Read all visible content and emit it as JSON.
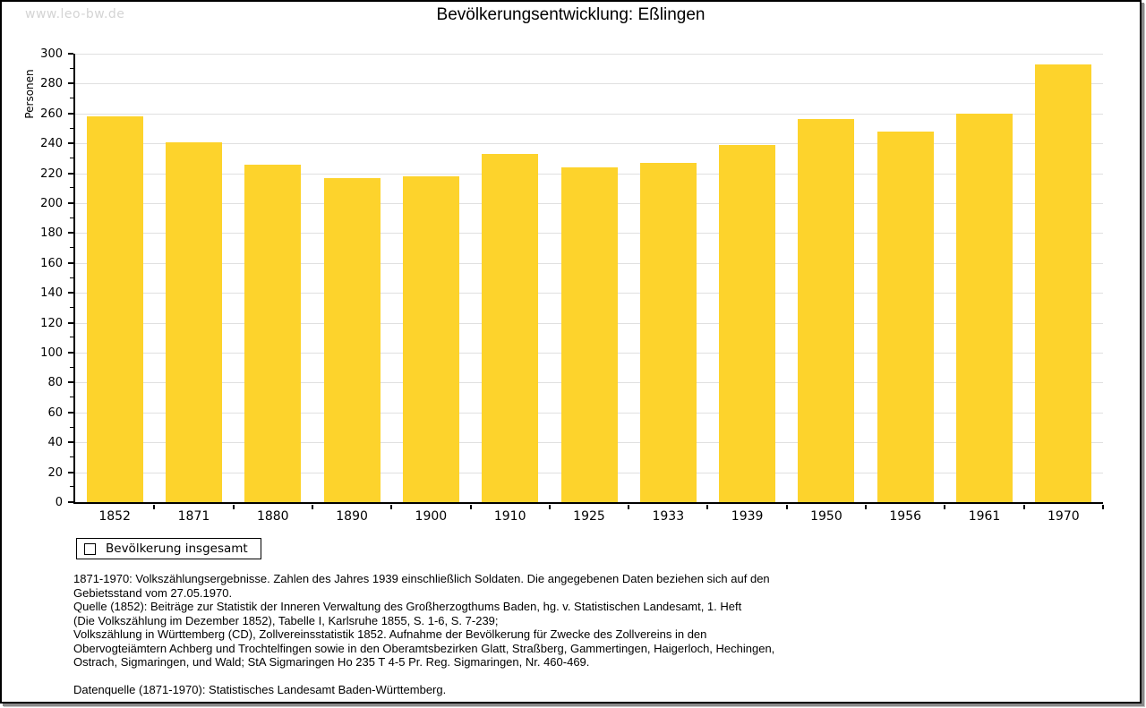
{
  "watermark": "www.leo-bw.de",
  "title": "Bevölkerungsentwicklung: Eßlingen",
  "chart_data": {
    "type": "bar",
    "title": "Bevölkerungsentwicklung: Eßlingen",
    "xlabel": "",
    "ylabel": "Personen",
    "categories": [
      "1852",
      "1871",
      "1880",
      "1890",
      "1900",
      "1910",
      "1925",
      "1933",
      "1939",
      "1950",
      "1956",
      "1961",
      "1970"
    ],
    "values": [
      258,
      241,
      226,
      217,
      218,
      233,
      224,
      227,
      239,
      256,
      248,
      260,
      293
    ],
    "ylim": [
      0,
      300
    ],
    "ytick_step": 20,
    "yminor_step": 10,
    "grid": true,
    "legend_entries": [
      "Bevölkerung insgesamt"
    ],
    "legend_position": "bottom-left",
    "bar_color": "#fdd32c",
    "grid_color": "#e0e0e0",
    "axis_color": "#000000"
  },
  "legend": {
    "label": "Bevölkerung insgesamt",
    "swatch_color": "#fdd32c"
  },
  "footer": {
    "lines": [
      "1871-1970: Volkszählungsergebnisse. Zahlen des Jahres 1939 einschließlich Soldaten. Die angegebenen Daten beziehen sich auf den",
      "Gebietsstand vom 27.05.1970.",
      "Quelle (1852): Beiträge zur Statistik der Inneren Verwaltung des Großherzogthums Baden, hg. v. Statistischen Landesamt, 1. Heft",
      "(Die Volkszählung im Dezember 1852), Tabelle I, Karlsruhe 1855, S. 1-6, S. 7-239;",
      "Volkszählung in Württemberg (CD), Zollvereinsstatistik 1852. Aufnahme der Bevölkerung für Zwecke des Zollvereins in den",
      "Obervogteiämtern Achberg und Trochtelfingen sowie in den Oberamtsbezirken Glatt, Straßberg, Gammertingen, Haigerloch, Hechingen,",
      "Ostrach, Sigmaringen, und Wald; StA Sigmaringen Ho 235 T 4-5 Pr. Reg. Sigmaringen, Nr. 460-469.",
      "",
      "Datenquelle (1871-1970): Statistisches Landesamt Baden-Württemberg."
    ]
  }
}
